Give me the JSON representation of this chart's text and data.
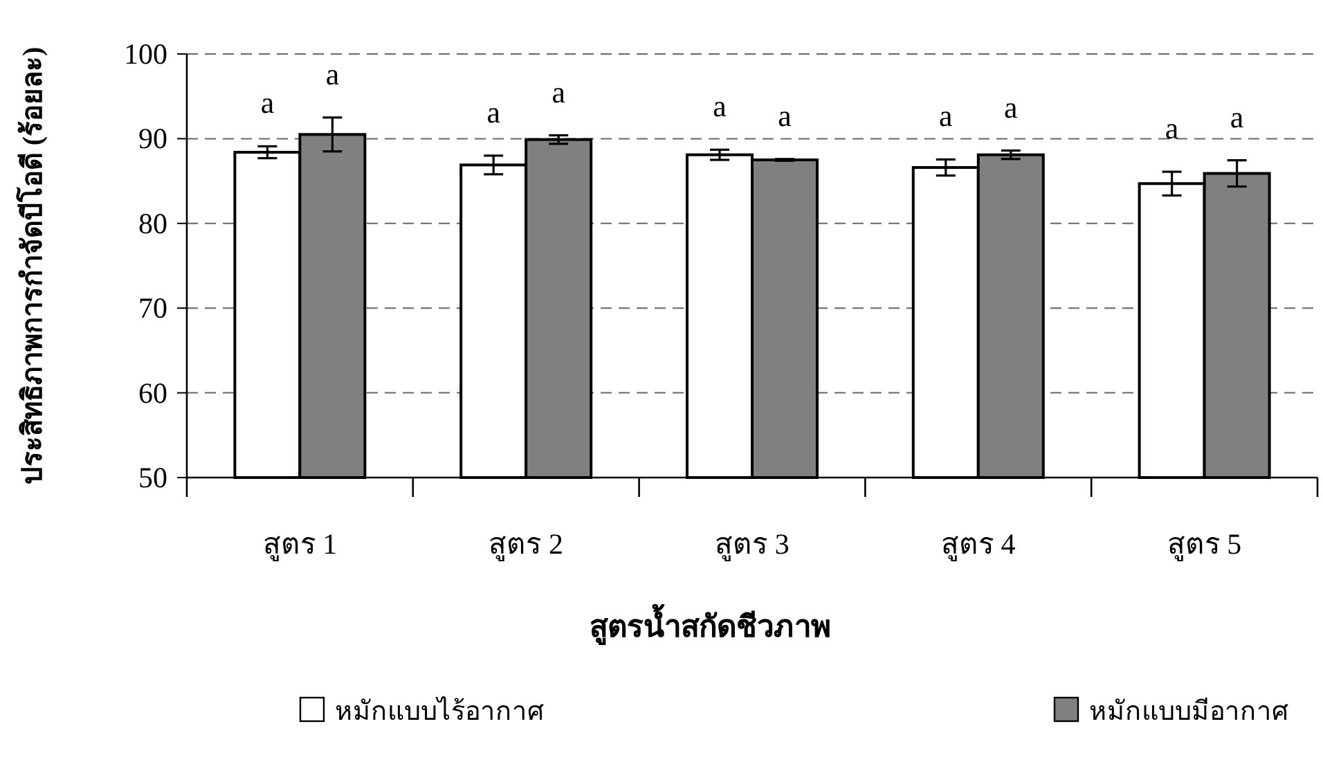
{
  "chart_data": {
    "type": "bar",
    "xlabel": "สูตรน้ำสกัดชีวภาพ",
    "ylabel": "ประสิทธิภาพการกำจัดบีโอดี (ร้อยละ)",
    "categories": [
      "สูตร 1",
      "สูตร 2",
      "สูตร 3",
      "สูตร 4",
      "สูตร 5"
    ],
    "series": [
      {
        "name": "หมักแบบไร้อากาศ",
        "color": "#ffffff",
        "values": [
          88.4,
          86.9,
          88.1,
          86.6,
          84.7
        ],
        "errors": [
          0.7,
          1.1,
          0.6,
          0.95,
          1.4
        ],
        "value_labels": [
          "a",
          "a",
          "a",
          "a",
          "a"
        ]
      },
      {
        "name": "หมักแบบมีอากาศ",
        "color": "#808080",
        "values": [
          90.5,
          89.9,
          87.5,
          88.1,
          85.9
        ],
        "errors": [
          2.0,
          0.5,
          0.1,
          0.5,
          1.55
        ],
        "value_labels": [
          "a",
          "a",
          "a",
          "a",
          "a"
        ]
      }
    ],
    "ylim": [
      50,
      100
    ],
    "yticks": [
      50,
      60,
      70,
      80,
      90,
      100
    ],
    "grid": "y",
    "legend": "bottom"
  }
}
